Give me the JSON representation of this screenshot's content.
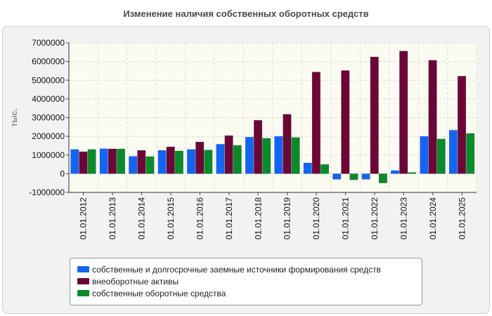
{
  "chart_data": {
    "type": "bar",
    "title": "Изменение наличия собственных оборотных средств",
    "ylabel": "тыс.",
    "xlabel": "",
    "ylim": [
      -1000000,
      7000000
    ],
    "yticks": [
      "-1000000",
      "0",
      "1000000",
      "2000000",
      "3000000",
      "4000000",
      "5000000",
      "6000000",
      "7000000"
    ],
    "categories": [
      "01.01.2012",
      "01.01.2013",
      "01.01.2014",
      "01.01.2015",
      "01.01.2016",
      "01.01.2017",
      "01.01.2018",
      "01.01.2019",
      "01.01.2020",
      "01.01.2021",
      "01.01.2022",
      "01.01.2023",
      "01.01.2024",
      "01.01.2025"
    ],
    "series": [
      {
        "name": "собственные и долгосрочные заемные источники формирования средств",
        "color": "#1464f4",
        "values": [
          1300000,
          1340000,
          930000,
          1250000,
          1300000,
          1580000,
          1960000,
          2000000,
          580000,
          -300000,
          -300000,
          170000,
          2000000,
          2330000
        ]
      },
      {
        "name": "внеоборотные активы",
        "color": "#6b0737",
        "values": [
          1180000,
          1330000,
          1250000,
          1440000,
          1700000,
          2040000,
          2860000,
          3180000,
          5440000,
          5520000,
          6250000,
          6560000,
          6070000,
          5220000
        ]
      },
      {
        "name": "собственные оборотные средства",
        "color": "#0a8a2a",
        "values": [
          1300000,
          1330000,
          920000,
          1220000,
          1270000,
          1520000,
          1900000,
          1940000,
          500000,
          -330000,
          -500000,
          70000,
          1860000,
          2160000
        ]
      }
    ],
    "grid": true,
    "legend_position": "bottom"
  }
}
